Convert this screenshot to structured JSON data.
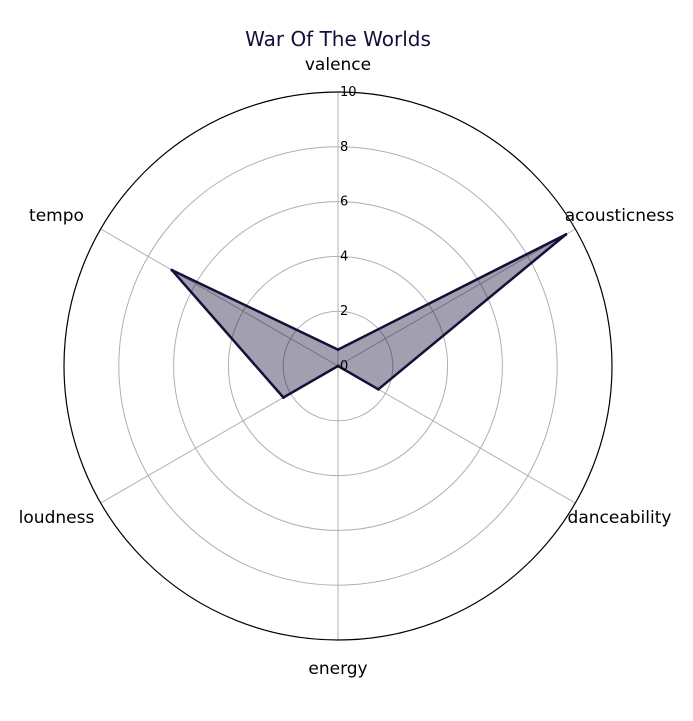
{
  "chart_data": {
    "type": "radar",
    "title": "War Of The Worlds",
    "axes": [
      "valence",
      "acousticness",
      "danceability",
      "energy",
      "loudness",
      "tempo"
    ],
    "values": [
      0.6,
      9.6,
      1.7,
      0.0,
      2.3,
      7.0
    ],
    "radial_ticks": [
      "0",
      "2",
      "4",
      "6",
      "8",
      "10"
    ],
    "rlim": [
      0,
      10
    ],
    "grid": true,
    "colors": {
      "title": "#13103a",
      "line": "#13103a",
      "fill": "#13103a",
      "grid": "#b0b0b0",
      "frame": "#000000"
    }
  }
}
